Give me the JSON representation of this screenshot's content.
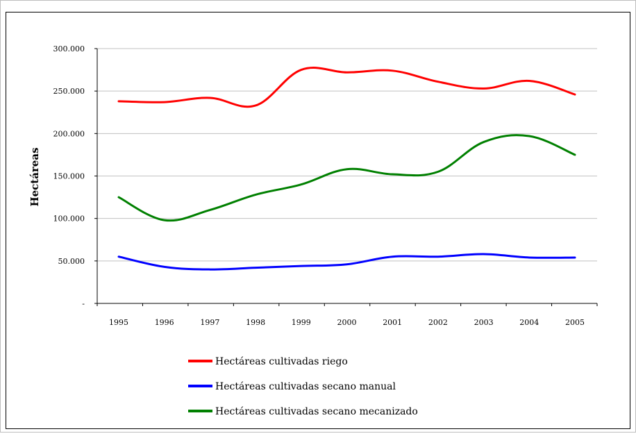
{
  "chart_data": {
    "type": "line",
    "title": "",
    "xlabel": "",
    "ylabel": "Hectáreas",
    "ylim": [
      0,
      300000
    ],
    "yticks": [
      "-",
      "50.000",
      "100.000",
      "150.000",
      "200.000",
      "250.000",
      "300.000"
    ],
    "ytick_values": [
      0,
      50000,
      100000,
      150000,
      200000,
      250000,
      300000
    ],
    "categories": [
      "1995",
      "1996",
      "1997",
      "1998",
      "1999",
      "2000",
      "2001",
      "2002",
      "2003",
      "2004",
      "2005"
    ],
    "grid": "horizontal",
    "legend_position": "bottom",
    "series": [
      {
        "name": "Hectáreas cultivadas riego",
        "color": "#ff0000",
        "values": [
          238000,
          237000,
          242000,
          233000,
          275000,
          272000,
          274000,
          261000,
          253000,
          262000,
          246000
        ]
      },
      {
        "name": "Hectáreas cultivadas secano manual",
        "color": "#0000ff",
        "values": [
          55000,
          43000,
          40000,
          42000,
          44000,
          46000,
          55000,
          55000,
          58000,
          54000,
          54000
        ]
      },
      {
        "name": "Hectáreas cultivadas secano mecanizado",
        "color": "#008000",
        "values": [
          125000,
          98000,
          110000,
          128000,
          140000,
          158000,
          152000,
          155000,
          190000,
          197000,
          175000
        ]
      }
    ]
  }
}
